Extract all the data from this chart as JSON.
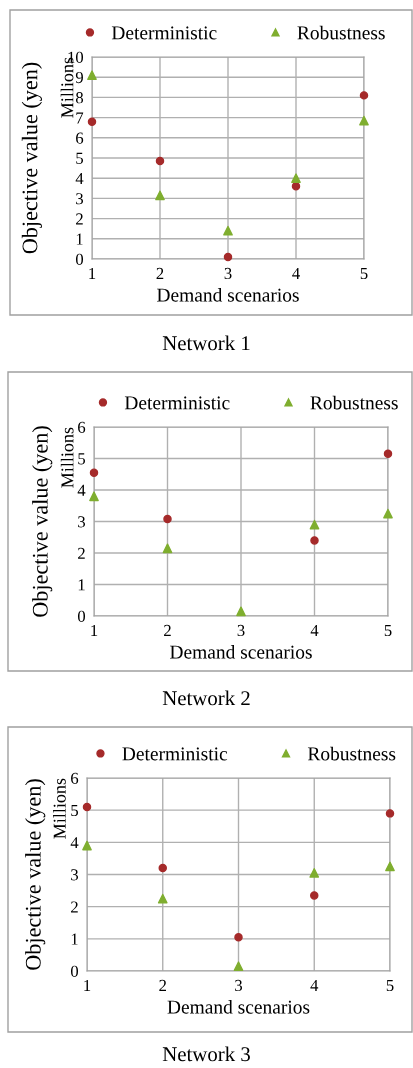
{
  "chart_data": [
    {
      "type": "scatter",
      "title": "Network 1",
      "xlabel": "Demand scenarios",
      "ylabel": "Objective value (yen)",
      "annotations": [
        "Millions"
      ],
      "x": [
        1,
        2,
        3,
        4,
        5
      ],
      "xlim": [
        1,
        5
      ],
      "xticks": [
        1,
        2,
        3,
        4,
        5
      ],
      "ylim": [
        0,
        10
      ],
      "yticks": [
        0,
        1,
        2,
        3,
        4,
        5,
        6,
        7,
        8,
        9,
        10
      ],
      "grid": true,
      "legend": "top",
      "series": [
        {
          "name": "Deterministic",
          "color": "#a52a2a",
          "marker": "circle",
          "values": [
            6.8,
            4.85,
            0.1,
            3.6,
            8.1
          ]
        },
        {
          "name": "Robustness",
          "color": "#7fae2f",
          "marker": "triangle",
          "values": [
            9.1,
            3.15,
            1.4,
            4.0,
            6.85
          ]
        }
      ]
    },
    {
      "type": "scatter",
      "title": "Network 2",
      "xlabel": "Demand scenarios",
      "ylabel": "Objective value (yen)",
      "annotations": [
        "Millions"
      ],
      "x": [
        1,
        2,
        3,
        4,
        5
      ],
      "xlim": [
        1,
        5
      ],
      "xticks": [
        1,
        2,
        3,
        4,
        5
      ],
      "ylim": [
        0,
        6
      ],
      "yticks": [
        0,
        1,
        2,
        3,
        4,
        5,
        6
      ],
      "grid": true,
      "legend": "top",
      "series": [
        {
          "name": "Deterministic",
          "color": "#a52a2a",
          "marker": "circle",
          "values": [
            4.55,
            3.08,
            null,
            2.4,
            5.15
          ]
        },
        {
          "name": "Robustness",
          "color": "#7fae2f",
          "marker": "triangle",
          "values": [
            3.8,
            2.15,
            0.15,
            2.9,
            3.25
          ]
        }
      ]
    },
    {
      "type": "scatter",
      "title": "Network 3",
      "xlabel": "Demand scenarios",
      "ylabel": "Objective value (yen)",
      "annotations": [
        "Millions"
      ],
      "x": [
        1,
        2,
        3,
        4,
        5
      ],
      "xlim": [
        1,
        5
      ],
      "xticks": [
        1,
        2,
        3,
        4,
        5
      ],
      "ylim": [
        0,
        6
      ],
      "yticks": [
        0,
        1,
        2,
        3,
        4,
        5,
        6
      ],
      "grid": true,
      "legend": "top",
      "series": [
        {
          "name": "Deterministic",
          "color": "#a52a2a",
          "marker": "circle",
          "values": [
            5.1,
            3.2,
            1.05,
            2.35,
            4.9
          ]
        },
        {
          "name": "Robustness",
          "color": "#7fae2f",
          "marker": "triangle",
          "values": [
            3.9,
            2.25,
            0.15,
            3.05,
            3.25
          ]
        }
      ]
    }
  ]
}
